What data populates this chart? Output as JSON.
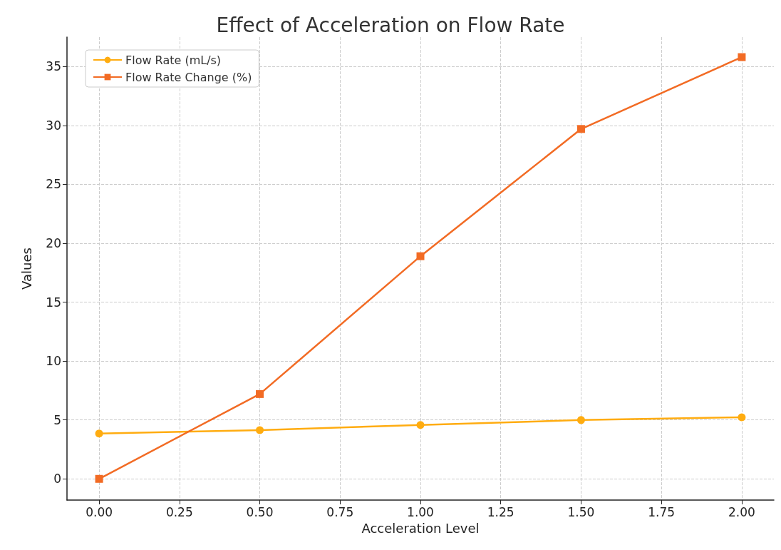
{
  "chart_data": {
    "type": "line",
    "title": "Effect of Acceleration on Flow Rate",
    "xlabel": "Acceleration Level",
    "ylabel": "Values",
    "x": [
      0,
      0.5,
      1,
      1.5,
      2
    ],
    "series": [
      {
        "name": "Flow Rate (mL/s)",
        "color": "#ffac10",
        "marker": "circle",
        "values": [
          3.85,
          4.13,
          4.58,
          4.99,
          5.23
        ]
      },
      {
        "name": "Flow Rate Change (%)",
        "color": "#f26b24",
        "marker": "square",
        "values": [
          0,
          7.2,
          18.9,
          29.7,
          35.8
        ]
      }
    ],
    "xlim": [
      -0.1,
      2.1
    ],
    "xticks": [
      {
        "value": 0,
        "label": "0.00"
      },
      {
        "value": 0.25,
        "label": "0.25"
      },
      {
        "value": 0.5,
        "label": "0.50"
      },
      {
        "value": 0.75,
        "label": "0.75"
      },
      {
        "value": 1,
        "label": "1.00"
      },
      {
        "value": 1.25,
        "label": "1.25"
      },
      {
        "value": 1.5,
        "label": "1.50"
      },
      {
        "value": 1.75,
        "label": "1.75"
      },
      {
        "value": 2,
        "label": "2.00"
      }
    ],
    "ylim": [
      -1.8,
      37.5
    ],
    "yticks": [
      0,
      5,
      10,
      15,
      20,
      25,
      30,
      35
    ],
    "grid": true,
    "legend": "top left",
    "line_style": "solid"
  }
}
